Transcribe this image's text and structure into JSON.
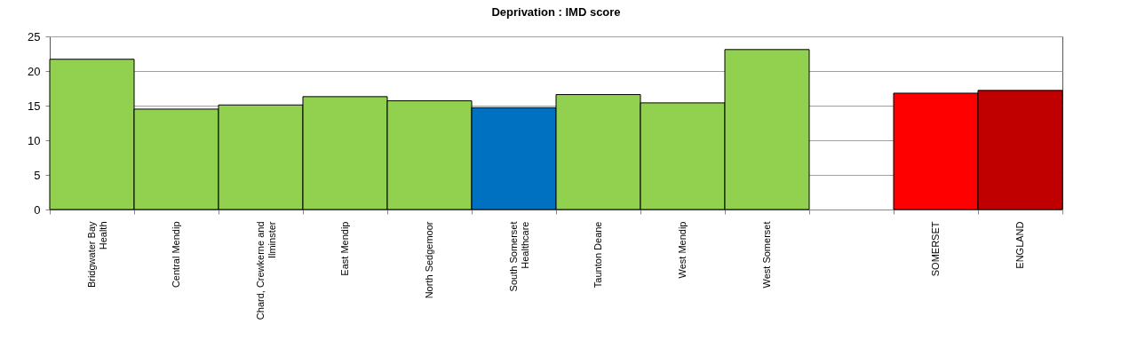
{
  "chart_data": {
    "type": "bar",
    "title": "Deprivation : IMD score",
    "categories": [
      "Bridgwater Bay Health",
      "Central Mendip",
      "Chard, Crewkerne and Ilminster",
      "East Mendip",
      "North Sedgemoor",
      "South Somerset Healthcare",
      "Taunton Deane",
      "West Mendip",
      "West Somerset",
      null,
      "SOMERSET",
      "ENGLAND"
    ],
    "values": [
      21.7,
      14.5,
      15.1,
      16.3,
      15.7,
      14.7,
      16.6,
      15.4,
      23.1,
      null,
      16.8,
      17.2
    ],
    "colors": [
      "#92d050",
      "#92d050",
      "#92d050",
      "#92d050",
      "#92d050",
      "#0070c0",
      "#92d050",
      "#92d050",
      "#92d050",
      "#92d050",
      "#ff0000",
      "#c00000"
    ],
    "ylim": [
      0,
      25
    ],
    "yticks": [
      0,
      5,
      10,
      15,
      20,
      25
    ],
    "grid": "y"
  }
}
